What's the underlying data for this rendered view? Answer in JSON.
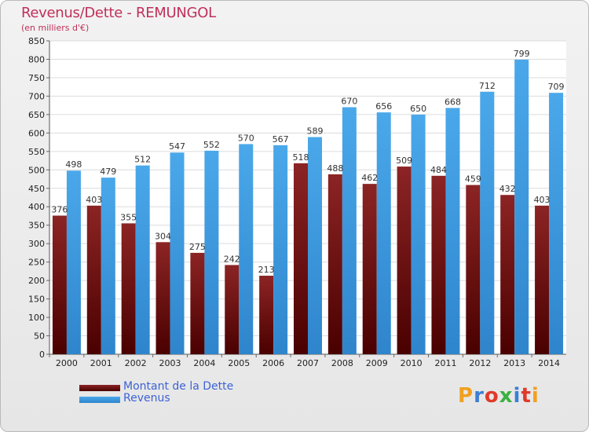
{
  "title": "Revenus/Dette - REMUNGOL",
  "subtitle": "(en milliers d'€)",
  "logo": {
    "text": "Proxiti",
    "colors": [
      "#f0a020",
      "#3b7fd4",
      "#e03a2a",
      "#3bb040",
      "#3b7fd4",
      "#e03a2a",
      "#f0a020"
    ]
  },
  "colors": {
    "dette": "#7a1717",
    "revenus": "#3a9ae0"
  },
  "chart_data": {
    "type": "bar",
    "categories": [
      "2000",
      "2001",
      "2002",
      "2003",
      "2004",
      "2005",
      "2006",
      "2007",
      "2008",
      "2009",
      "2010",
      "2011",
      "2012",
      "2013",
      "2014"
    ],
    "series": [
      {
        "name": "Montant de la Dette",
        "values": [
          376,
          403,
          355,
          304,
          275,
          242,
          213,
          518,
          488,
          462,
          509,
          484,
          459,
          432,
          403
        ]
      },
      {
        "name": "Revenus",
        "values": [
          498,
          479,
          512,
          547,
          552,
          570,
          567,
          589,
          670,
          656,
          650,
          668,
          712,
          799,
          709
        ]
      }
    ],
    "yticks": [
      0,
      50,
      100,
      150,
      200,
      250,
      300,
      350,
      400,
      450,
      500,
      550,
      600,
      650,
      700,
      750,
      800,
      850
    ],
    "ylim": [
      0,
      850
    ],
    "grid": true,
    "legend_position": "bottom-left"
  }
}
